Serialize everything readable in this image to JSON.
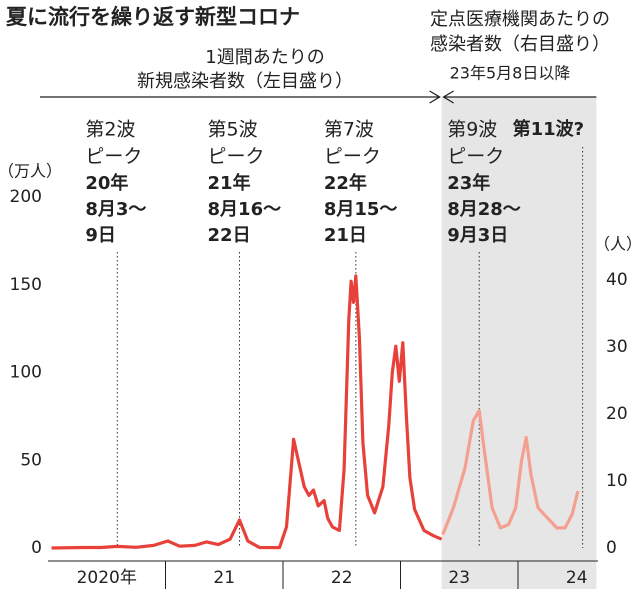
{
  "chart_data": {
    "type": "line",
    "title": "夏に流行を繰り返す新型コロナ",
    "left_label": [
      "1週間あたりの",
      "新規感染者数（左目盛り）"
    ],
    "right_label": [
      "定点医療機関あたりの",
      "感染者数（右目盛り）"
    ],
    "right_period": "23年5月8日以降",
    "ylabel": "（万人）",
    "y2label": "（人）",
    "shade_from": 2023.35,
    "xlim": [
      2020,
      2024.65
    ],
    "xticks": [
      {
        "value": 2020.5,
        "label": "2020年"
      },
      {
        "value": 2021.5,
        "label": "21"
      },
      {
        "value": 2022.5,
        "label": "22"
      },
      {
        "value": 2023.5,
        "label": "23"
      },
      {
        "value": 2024.5,
        "label": "24"
      }
    ],
    "ylim": [
      0,
      200
    ],
    "yticks": [
      0,
      50,
      100,
      150,
      200
    ],
    "y2lim": [
      0,
      40
    ],
    "y2ticks": [
      0,
      10,
      20,
      30,
      40
    ],
    "series": [
      {
        "color": "#e8413a",
        "x": [
          2020.03,
          2020.3,
          2020.45,
          2020.59,
          2020.75,
          2020.9,
          2021.02,
          2021.12,
          2021.25,
          2021.35,
          2021.45,
          2021.55,
          2021.63,
          2021.7,
          2021.8,
          2021.97,
          2022.03,
          2022.09,
          2022.13,
          2022.18,
          2022.22,
          2022.26,
          2022.3,
          2022.35,
          2022.38,
          2022.42,
          2022.48,
          2022.52,
          2022.56,
          2022.58,
          2022.6,
          2022.62,
          2022.65,
          2022.68,
          2022.72,
          2022.78,
          2022.85,
          2022.9,
          2022.93,
          2022.96,
          2022.99,
          2023.02,
          2023.05,
          2023.08,
          2023.12,
          2023.2,
          2023.28,
          2023.35
        ],
        "values": [
          0,
          0.3,
          0.3,
          0.9,
          0.4,
          1.5,
          4,
          1,
          1.5,
          3.5,
          2,
          5,
          16,
          4,
          0.3,
          0.2,
          12,
          62,
          50,
          35,
          30,
          33,
          24,
          27,
          17,
          12,
          10,
          45,
          130,
          152,
          140,
          155,
          120,
          60,
          30,
          20,
          35,
          70,
          100,
          115,
          95,
          117,
          75,
          40,
          22,
          10,
          7,
          5
        ]
      },
      {
        "color": "#f4a090",
        "axis": "y2",
        "x": [
          2023.36,
          2023.45,
          2023.55,
          2023.62,
          2023.67,
          2023.71,
          2023.78,
          2023.85,
          2023.92,
          2023.98,
          2024.03,
          2024.07,
          2024.11,
          2024.17,
          2024.25,
          2024.33,
          2024.4,
          2024.46,
          2024.51
        ],
        "values": [
          2,
          6,
          12,
          19,
          20.5,
          15,
          6,
          3,
          3.5,
          6,
          13,
          16.5,
          11,
          6,
          4.5,
          3,
          3,
          5,
          8.5
        ]
      }
    ],
    "annotations": [
      {
        "x": 2020.59,
        "label": [
          "第2波",
          "ピーク"
        ],
        "date": [
          "20年",
          "8月3～",
          "9日"
        ]
      },
      {
        "x": 2021.63,
        "label": [
          "第5波",
          "ピーク"
        ],
        "date": [
          "21年",
          "8月16～",
          "22日"
        ]
      },
      {
        "x": 2022.62,
        "label": [
          "第7波",
          "ピーク"
        ],
        "date": [
          "22年",
          "8月15～",
          "21日"
        ]
      },
      {
        "x": 2023.67,
        "label": [
          "第9波",
          "ピーク"
        ],
        "date": [
          "23年",
          "8月28～",
          "9月3日"
        ]
      },
      {
        "x": 2024.55,
        "label": [
          "第11波?"
        ],
        "bold_label": true
      }
    ]
  }
}
